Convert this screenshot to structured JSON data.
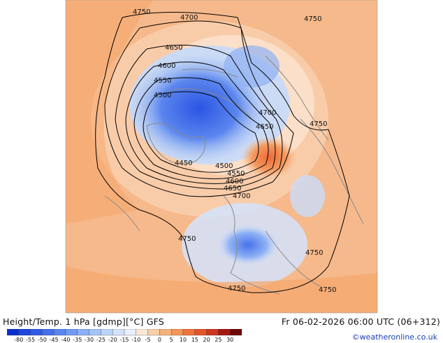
{
  "map": {
    "footer_title": "Height/Temp. 1 hPa [gdmp][°C] GFS",
    "footer_date": "Fr 06-02-2026 06:00 UTC (06+312)",
    "credit": "©weatheronline.co.uk",
    "contour_labels": [
      "4750",
      "4700",
      "4750",
      "4650",
      "4600",
      "4550",
      "4500",
      "4700",
      "4650",
      "4750",
      "4450",
      "4500",
      "4550",
      "4600",
      "4650",
      "4700",
      "4750",
      "4750",
      "4750",
      "4750"
    ],
    "scale_ticks": [
      "-80",
      "-55",
      "-50",
      "-45",
      "-40",
      "-35",
      "-30",
      "-25",
      "-20",
      "-15",
      "-10",
      "-5",
      "0",
      "5",
      "10",
      "15",
      "20",
      "25",
      "30"
    ],
    "scale_colors": [
      "#0a2fcf",
      "#1c45e0",
      "#2f5ae6",
      "#4470ea",
      "#5a86ee",
      "#719bf2",
      "#8ab0f5",
      "#a3c3f7",
      "#bcd4f9",
      "#d3e3fb",
      "#e8f0fd",
      "#fbe9d6",
      "#f8d0a8",
      "#f6b27c",
      "#f39558",
      "#ee743c",
      "#e4542b",
      "#cf3420",
      "#a51812",
      "#6e0808"
    ]
  }
}
